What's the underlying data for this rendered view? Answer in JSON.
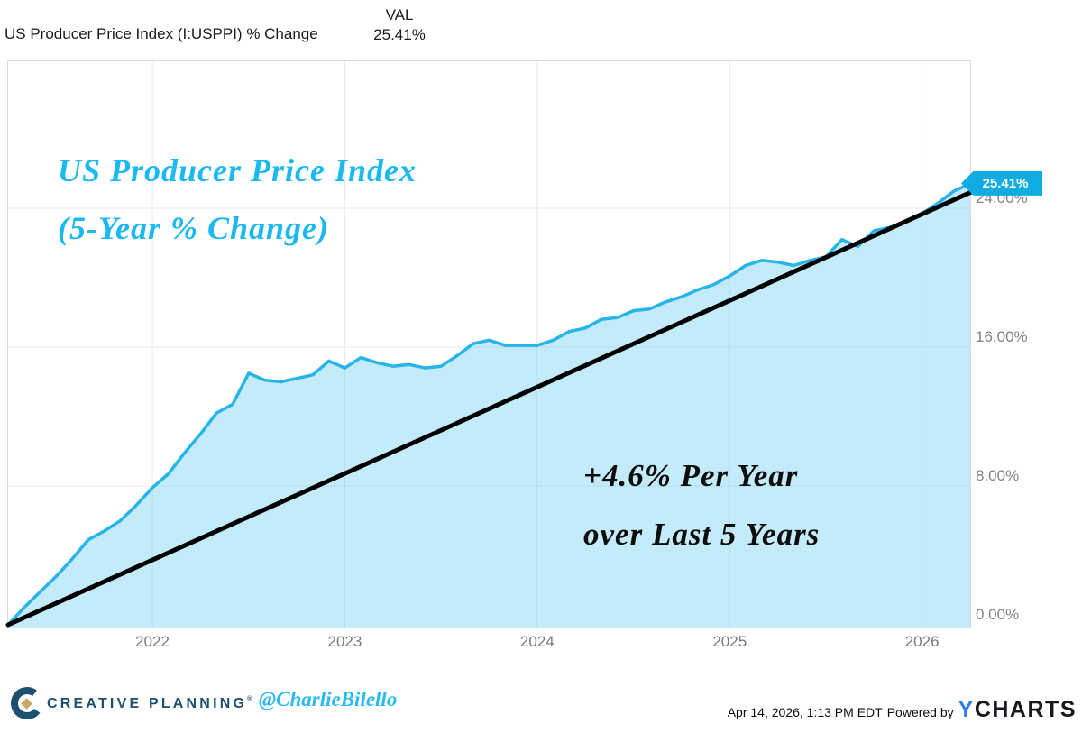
{
  "header": {
    "series_label": "US Producer Price Index (I:USPPI) % Change",
    "val_label": "VAL",
    "val_value": "25.41%"
  },
  "overlay": {
    "title_line1": "US Producer Price Index",
    "title_line2": "(5-Year % Change)",
    "note_line1": "+4.6% Per Year",
    "note_line2": "over Last 5 Years"
  },
  "badge": {
    "text": "25.41%"
  },
  "axes": {
    "y_ticks": [
      {
        "label": "24.00%",
        "pct": 24
      },
      {
        "label": "16.00%",
        "pct": 16
      },
      {
        "label": "8.00%",
        "pct": 8
      },
      {
        "label": "0.00%",
        "pct": 0
      }
    ],
    "x_ticks": [
      {
        "label": "2022",
        "month_index": 9
      },
      {
        "label": "2023",
        "month_index": 21
      },
      {
        "label": "2024",
        "month_index": 33
      },
      {
        "label": "2025",
        "month_index": 45
      },
      {
        "label": "2026",
        "month_index": 57
      }
    ]
  },
  "footer": {
    "brand": "CREATIVE PLANNING",
    "reg_mark": "®",
    "handle": "@CharlieBilello",
    "timestamp": "Apr 14, 2026, 1:13 PM EDT",
    "powered_by": "Powered by",
    "ycharts_prefix": "Y",
    "ycharts_suffix": "CHARTS"
  },
  "colors": {
    "accent_cyan": "#29b4e8",
    "fill_light": "rgba(86,197,238,0.35)",
    "badge_bg": "#0face4",
    "title_cyan": "#1cb8f0",
    "trend_black": "#000000",
    "grid": "#e9e9e9",
    "panel_border": "#dadada",
    "navy": "#1d4f6e",
    "gold": "#c9a969",
    "ycharts_blue": "#2e7ce4",
    "y_axis_text": "#87817c",
    "x_axis_text": "#787878"
  },
  "chart_data": {
    "type": "area",
    "title": "US Producer Price Index (5-Year % Change)",
    "series_name": "US Producer Price Index (I:USPPI) % Change",
    "unit": "%",
    "grid": "on",
    "legend": "none",
    "ylim": [
      0,
      32.5
    ],
    "y_ticks_pct": [
      0,
      8,
      16,
      24
    ],
    "latest_value_pct": 25.41,
    "months": [
      "2021-04",
      "2021-05",
      "2021-06",
      "2021-07",
      "2021-08",
      "2021-09",
      "2021-10",
      "2021-11",
      "2021-12",
      "2022-01",
      "2022-02",
      "2022-03",
      "2022-04",
      "2022-05",
      "2022-06",
      "2022-07",
      "2022-08",
      "2022-09",
      "2022-10",
      "2022-11",
      "2022-12",
      "2023-01",
      "2023-02",
      "2023-03",
      "2023-04",
      "2023-05",
      "2023-06",
      "2023-07",
      "2023-08",
      "2023-09",
      "2023-10",
      "2023-11",
      "2023-12",
      "2024-01",
      "2024-02",
      "2024-03",
      "2024-04",
      "2024-05",
      "2024-06",
      "2024-07",
      "2024-08",
      "2024-09",
      "2024-10",
      "2024-11",
      "2024-12",
      "2025-01",
      "2025-02",
      "2025-03",
      "2025-04",
      "2025-05",
      "2025-06",
      "2025-07",
      "2025-08",
      "2025-09",
      "2025-10",
      "2025-11",
      "2025-12",
      "2026-01",
      "2026-02",
      "2026-03",
      "2026-04"
    ],
    "values": [
      0.0,
      1.0,
      1.9,
      2.8,
      3.8,
      4.9,
      5.4,
      6.0,
      6.9,
      7.9,
      8.7,
      9.9,
      11.0,
      12.2,
      12.7,
      14.5,
      14.1,
      14.0,
      14.2,
      14.4,
      15.2,
      14.8,
      15.4,
      15.1,
      14.9,
      15.0,
      14.8,
      14.9,
      15.5,
      16.2,
      16.4,
      16.1,
      16.1,
      16.1,
      16.4,
      16.9,
      17.1,
      17.6,
      17.7,
      18.1,
      18.2,
      18.6,
      18.9,
      19.3,
      19.6,
      20.1,
      20.7,
      21.0,
      20.9,
      20.7,
      21.0,
      21.2,
      22.2,
      21.8,
      22.7,
      22.9,
      23.2,
      23.7,
      24.3,
      25.0,
      25.41
    ],
    "trend_line": {
      "label": "+4.6% Per Year over Last 5 Years",
      "annual_rate_pct": 4.6,
      "t_start": 0,
      "pct_start": 0.0,
      "t_end": 60.56,
      "pct_end": 25.14
    }
  }
}
